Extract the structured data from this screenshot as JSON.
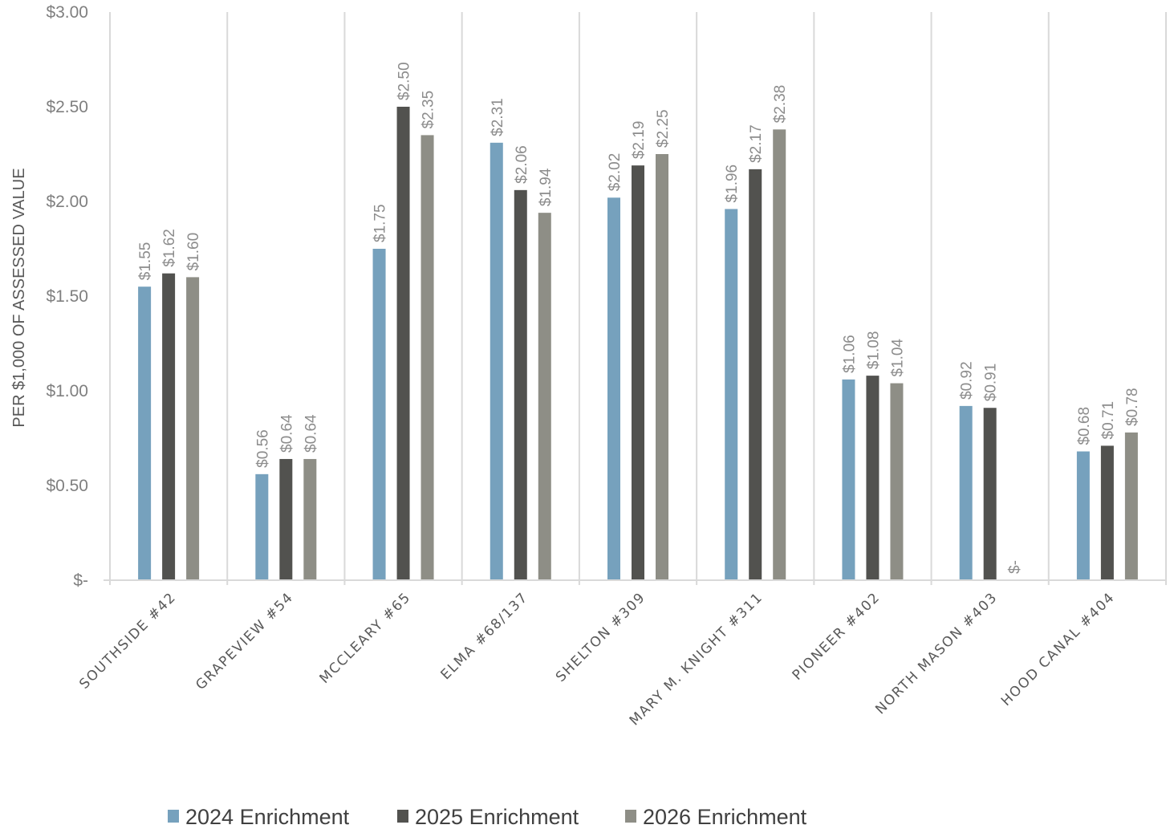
{
  "chart_data": {
    "type": "bar",
    "ylabel": "PER $1,000 OF ASSESSED VALUE",
    "ylim": [
      0,
      3
    ],
    "y_ticks": [
      {
        "value": 0,
        "label": "$-"
      },
      {
        "value": 0.5,
        "label": "$0.50"
      },
      {
        "value": 1.0,
        "label": "$1.00"
      },
      {
        "value": 1.5,
        "label": "$1.50"
      },
      {
        "value": 2.0,
        "label": "$2.00"
      },
      {
        "value": 2.5,
        "label": "$2.50"
      },
      {
        "value": 3.0,
        "label": "$3.00"
      }
    ],
    "categories": [
      "SOUTHSIDE #42",
      "GRAPEVIEW #54",
      "MCCLEARY #65",
      "ELMA #68/137",
      "SHELTON #309",
      "MARY M. KNIGHT #311",
      "PIONEER #402",
      "NORTH MASON #403",
      "HOOD CANAL #404"
    ],
    "series": [
      {
        "name": "2024 Enrichment",
        "color": "#76a1bd",
        "values": [
          1.55,
          0.56,
          1.75,
          2.31,
          2.02,
          1.96,
          1.06,
          0.92,
          0.68
        ],
        "labels": [
          "$1.55",
          "$0.56",
          "$1.75",
          "$2.31",
          "$2.02",
          "$1.96",
          "$1.06",
          "$0.92",
          "$0.68"
        ]
      },
      {
        "name": "2025 Enrichment",
        "color": "#52524f",
        "values": [
          1.62,
          0.64,
          2.5,
          2.06,
          2.19,
          2.17,
          1.08,
          0.91,
          0.71
        ],
        "labels": [
          "$1.62",
          "$0.64",
          "$2.50",
          "$2.06",
          "$2.19",
          "$2.17",
          "$1.08",
          "$0.91",
          "$0.71"
        ]
      },
      {
        "name": "2026 Enrichment",
        "color": "#8e8e86",
        "values": [
          1.6,
          0.64,
          2.35,
          1.94,
          2.25,
          2.38,
          1.04,
          0,
          0.78
        ],
        "labels": [
          "$1.60",
          "$0.64",
          "$2.35",
          "$1.94",
          "$2.25",
          "$2.38",
          "$1.04",
          "$-",
          "$0.78"
        ]
      }
    ],
    "grid": "vertical category separators",
    "legend_position": "bottom"
  }
}
